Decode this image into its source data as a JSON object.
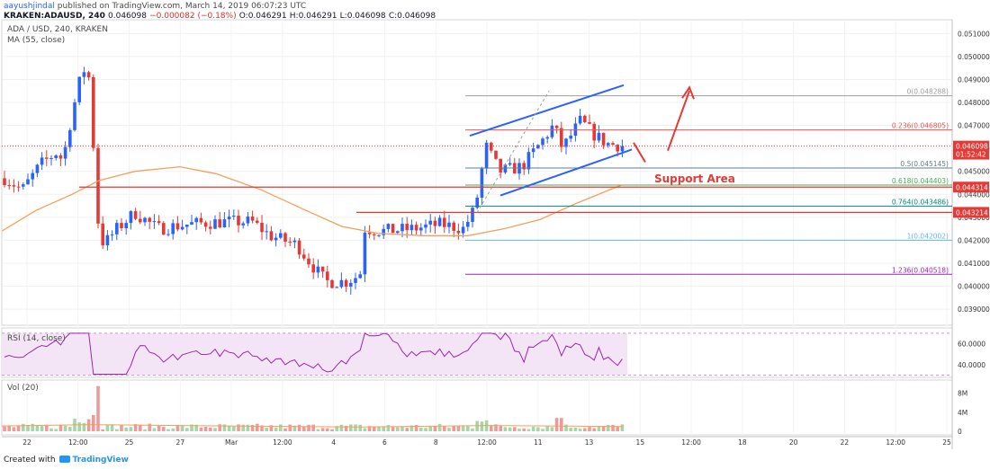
{
  "header": {
    "author": "aayushjindal",
    "published_text": "published on TradingView.com, March 14, 2019 06:07:23 UTC",
    "symbol": "KRAKEN:ADAUSD, 240",
    "last": "0.046098",
    "change": "−0.000082 (−0.18%)",
    "o": "O:0.046291",
    "h": "H:0.046291",
    "l": "L:0.046098",
    "c": "C:0.046098"
  },
  "pane_labels": {
    "pair": "ADA / USD, 240, KRAKEN",
    "ma": "MA (55, close)",
    "rsi": "RSI (14, close)",
    "vol": "Vol (20)"
  },
  "footer": {
    "created_with": "Created with",
    "brand": "TradingView"
  },
  "chart_data": {
    "type": "candlestick",
    "price_axis_ticks": [
      "0.051000",
      "0.050000",
      "0.049000",
      "0.048000",
      "0.047000",
      "0.046000",
      "0.045000",
      "0.044000",
      "0.043000",
      "0.042000",
      "0.041000",
      "0.040000",
      "0.039000"
    ],
    "ylim": [
      0.0383,
      0.0516
    ],
    "time_axis_ticks": [
      "22",
      "12:00",
      "25",
      "27",
      "Mar",
      "12:00",
      "4",
      "6",
      "8",
      "12:00",
      "11",
      "13",
      "15",
      "12:00",
      "18",
      "20",
      "22",
      "12:00",
      "25"
    ],
    "fib_levels": [
      {
        "label": "0(0.048288)",
        "value": 0.048288,
        "color": "#9e9e9e"
      },
      {
        "label": "0.236(0.046805)",
        "value": 0.046805,
        "color": "#ef5350"
      },
      {
        "label": "0.5(0.045145)",
        "value": 0.045145,
        "color": "#607d8b"
      },
      {
        "label": "0.618(0.044403)",
        "value": 0.044403,
        "color": "#4caf50"
      },
      {
        "label": "0.764(0.043486)",
        "value": 0.043486,
        "color": "#00897b"
      },
      {
        "label": "1(0.042002)",
        "value": 0.042002,
        "color": "#64b5f6"
      },
      {
        "label": "1.236(0.040518)",
        "value": 0.040518,
        "color": "#9c27b0"
      }
    ],
    "price_labels": [
      {
        "text": "0.046098",
        "value": 0.046098,
        "color": "#e53935"
      },
      {
        "text": "01:52:42",
        "value": 0.04575,
        "color": "#e53935"
      },
      {
        "text": "0.044314",
        "value": 0.044314,
        "color": "#e53935"
      },
      {
        "text": "0.043214",
        "value": 0.043214,
        "color": "#e53935"
      }
    ],
    "annotation": "Support Area",
    "rsi": {
      "ticks": [
        "60.0000",
        "40.0000"
      ],
      "ylim": [
        28,
        75
      ],
      "bands": [
        30,
        70
      ]
    },
    "volume": {
      "ticks": [
        "8M",
        "4M",
        "0"
      ],
      "ylim": [
        0,
        10
      ]
    }
  },
  "colors": {
    "up": "#2962ff",
    "down": "#e53935",
    "ma": "#f5a05a",
    "channel": "#2962ff",
    "support": "#e53935",
    "rsi": "#9c27b0"
  }
}
